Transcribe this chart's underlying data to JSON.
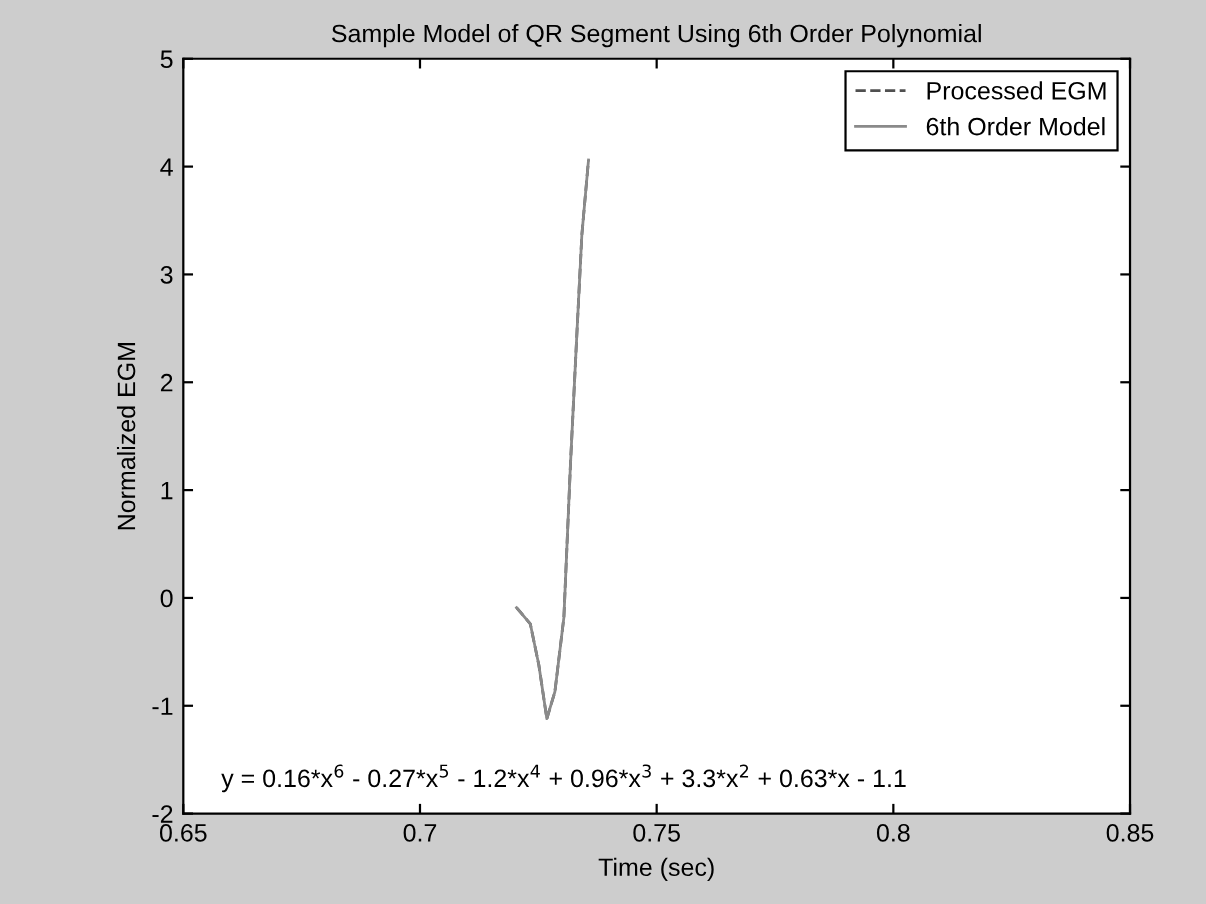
{
  "chart_data": {
    "type": "line",
    "title": "Sample Model of QR Segment Using 6th Order Polynomial",
    "xlabel": "Time (sec)",
    "ylabel": "Normalized EGM",
    "x": [
      0.7204,
      0.7233,
      0.7251,
      0.7268,
      0.7285,
      0.7304,
      0.7318,
      0.7332,
      0.7342,
      0.7356
    ],
    "series": [
      {
        "name": "Processed EGM",
        "color": "#505050",
        "line_style": "dashed",
        "values": [
          -0.09,
          -0.24,
          -0.62,
          -1.12,
          -0.87,
          -0.18,
          1.25,
          2.5,
          3.37,
          4.06
        ]
      },
      {
        "name": "6th Order Model",
        "color": "#8a8a8a",
        "line_style": "solid",
        "values": [
          -0.09,
          -0.24,
          -0.62,
          -1.12,
          -0.87,
          -0.18,
          1.25,
          2.5,
          3.37,
          4.06
        ]
      }
    ],
    "xlim": [
      0.65,
      0.85
    ],
    "xticks": [
      0.65,
      0.7,
      0.75,
      0.8,
      0.85
    ],
    "ylim": [
      -2,
      5
    ],
    "yticks": [
      -2,
      -1,
      0,
      1,
      2,
      3,
      4,
      5
    ],
    "grid": false,
    "legend": "top right",
    "annotations": [
      "y = 0.16*x$^{6}$ - 0.27*x$^{5}$ - 1.2*x$^{4}$ + 0.96*x$^{3}$ + 3.3*x$^{2}$ + 0.63*x - 1.1"
    ]
  }
}
